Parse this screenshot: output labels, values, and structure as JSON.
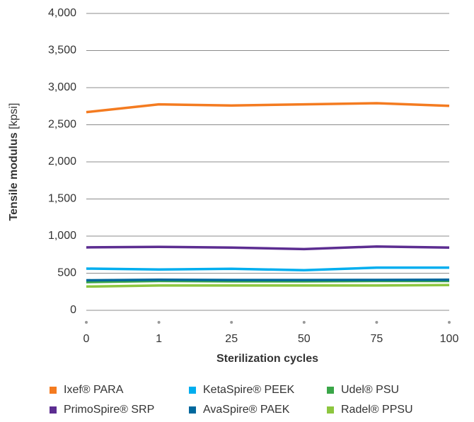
{
  "chart_data": {
    "type": "line",
    "y_label": "Tensile modulus",
    "y_unit": "[kpsi]",
    "x_label": "Sterilization cycles",
    "categories": [
      "0",
      "1",
      "25",
      "50",
      "75",
      "100"
    ],
    "ylim": [
      0,
      4000
    ],
    "yticks": [
      0,
      500,
      {
        "value": 1000,
        "label": "1,000"
      },
      {
        "value": 1500,
        "label": "1,500"
      },
      {
        "value": 2000,
        "label": "2,000"
      },
      {
        "value": 2500,
        "label": "2,500"
      },
      {
        "value": 3000,
        "label": "3,000"
      },
      {
        "value": 3500,
        "label": "3,500"
      },
      {
        "value": 4000,
        "label": "4,000"
      }
    ],
    "grid": true,
    "series": [
      {
        "name": "Ixef® PARA",
        "color": "#f47b20",
        "values": [
          2670,
          2775,
          2760,
          2775,
          2790,
          2755
        ]
      },
      {
        "name": "KetaSpire® PEEK",
        "color": "#00aeef",
        "values": [
          562,
          550,
          560,
          540,
          575,
          575
        ]
      },
      {
        "name": "Udel® PSU",
        "color": "#3aa648",
        "values": [
          380,
          395,
          390,
          390,
          395,
          395
        ]
      },
      {
        "name": "PrimoSpire® SRP",
        "color": "#5c2d91",
        "values": [
          848,
          855,
          845,
          825,
          860,
          845
        ]
      },
      {
        "name": "AvaSpire® PAEK",
        "color": "#00689d",
        "values": [
          405,
          412,
          408,
          408,
          410,
          412
        ]
      },
      {
        "name": "Radel® PPSU",
        "color": "#8dc63f",
        "values": [
          320,
          335,
          335,
          335,
          335,
          340
        ]
      }
    ]
  }
}
